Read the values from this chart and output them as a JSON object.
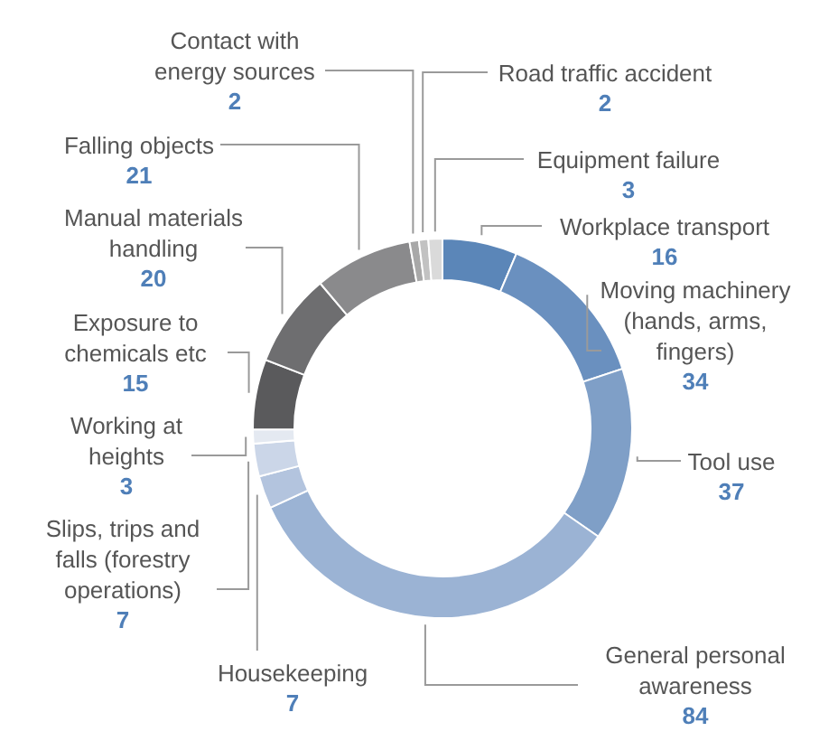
{
  "chart_data": {
    "type": "donut",
    "categories": [
      "Workplace transport",
      "Moving machinery (hands, arms, fingers)",
      "Tool use",
      "General personal awareness",
      "Housekeeping",
      "Slips, trips and falls (forestry operations)",
      "Working at heights",
      "Exposure to chemicals etc",
      "Manual materials handling",
      "Falling objects",
      "Contact with energy sources",
      "Road traffic accident",
      "Equipment failure"
    ],
    "values": [
      16,
      34,
      37,
      84,
      7,
      7,
      3,
      15,
      20,
      21,
      2,
      2,
      3
    ],
    "colors": [
      "#5b86b8",
      "#6a90bf",
      "#7f9fc7",
      "#9bb3d4",
      "#b3c4de",
      "#cbd6e8",
      "#e4e9f1",
      "#5a5a5c",
      "#6e6e70",
      "#8a8a8c",
      "#a8a8a8",
      "#c2c2c2",
      "#dadada"
    ],
    "data_labels": true
  }
}
